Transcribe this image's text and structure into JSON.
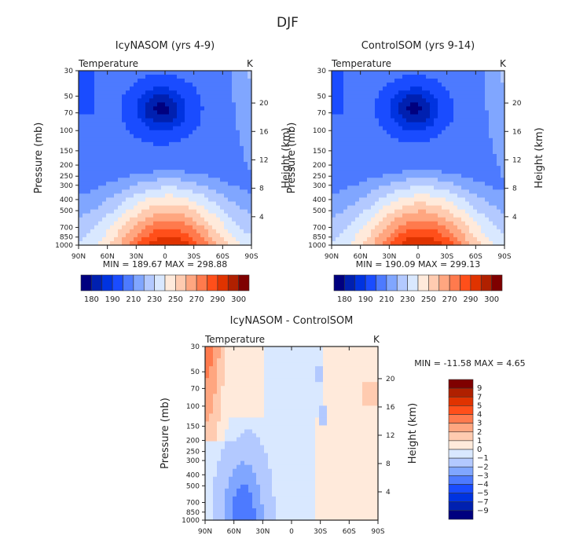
{
  "figure_title": "DJF",
  "palette": [
    "#00007f",
    "#0020b0",
    "#0033e0",
    "#1a4cff",
    "#4d7aff",
    "#80a6ff",
    "#b3c9ff",
    "#d9e8ff",
    "#ffeadb",
    "#ffcbb0",
    "#ffa680",
    "#ff7a4d",
    "#ff4f1a",
    "#e03300",
    "#b02000",
    "#7f0000"
  ],
  "chart_data": [
    {
      "type": "heatmap",
      "name": "icy",
      "title": "IcyNASOM (yrs 4-9)",
      "left_label": "Temperature",
      "right_label": "K",
      "xlabel": "",
      "ylabel": "Pressure (mb)",
      "y2label": "Height (km)",
      "x_ticks": [
        "90N",
        "60N",
        "30N",
        "0",
        "30S",
        "60S",
        "90S"
      ],
      "y_ticks": [
        "30",
        "50",
        "70",
        "100",
        "150",
        "200",
        "250",
        "300",
        "400",
        "500",
        "700",
        "850",
        "1000"
      ],
      "y2_ticks": [
        "20",
        "16",
        "12",
        "8",
        "4"
      ],
      "stats": "MIN = 189.67   MAX = 298.88",
      "min": 189.67,
      "max": 298.88,
      "colorbar_labels": [
        "180",
        "190",
        "210",
        "230",
        "250",
        "270",
        "290",
        "300"
      ],
      "colorbar_orientation": "horizontal"
    },
    {
      "type": "heatmap",
      "name": "ctl",
      "title": "ControlSOM (yrs 9-14)",
      "left_label": "Temperature",
      "right_label": "K",
      "xlabel": "",
      "ylabel": "Pressure (mb)",
      "y2label": "Height (km)",
      "x_ticks": [
        "90N",
        "60N",
        "30N",
        "0",
        "30S",
        "60S",
        "90S"
      ],
      "y_ticks": [
        "30",
        "50",
        "70",
        "100",
        "150",
        "200",
        "250",
        "300",
        "400",
        "500",
        "700",
        "850",
        "1000"
      ],
      "y2_ticks": [
        "20",
        "16",
        "12",
        "8",
        "4"
      ],
      "stats": "MIN = 190.09   MAX = 299.13",
      "min": 190.09,
      "max": 299.13,
      "colorbar_labels": [
        "180",
        "190",
        "210",
        "230",
        "250",
        "270",
        "290",
        "300"
      ],
      "colorbar_orientation": "horizontal"
    },
    {
      "type": "heatmap",
      "name": "diff",
      "title": "IcyNASOM - ControlSOM",
      "left_label": "Temperature",
      "right_label": "K",
      "xlabel": "",
      "ylabel": "Pressure (mb)",
      "y2label": "Height (km)",
      "x_ticks": [
        "90N",
        "60N",
        "30N",
        "0",
        "30S",
        "60S",
        "90S"
      ],
      "y_ticks": [
        "30",
        "50",
        "70",
        "100",
        "150",
        "200",
        "250",
        "300",
        "400",
        "500",
        "700",
        "850",
        "1000"
      ],
      "y2_ticks": [
        "20",
        "16",
        "12",
        "8",
        "4"
      ],
      "stats": "MIN = -11.58   MAX =    4.65",
      "min": -11.58,
      "max": 4.65,
      "colorbar_labels": [
        "9",
        "7",
        "5",
        "4",
        "3",
        "2",
        "1",
        "0",
        "-1",
        "-2",
        "-3",
        "-4",
        "-5",
        "-7",
        "-9"
      ],
      "colorbar_orientation": "vertical"
    }
  ]
}
